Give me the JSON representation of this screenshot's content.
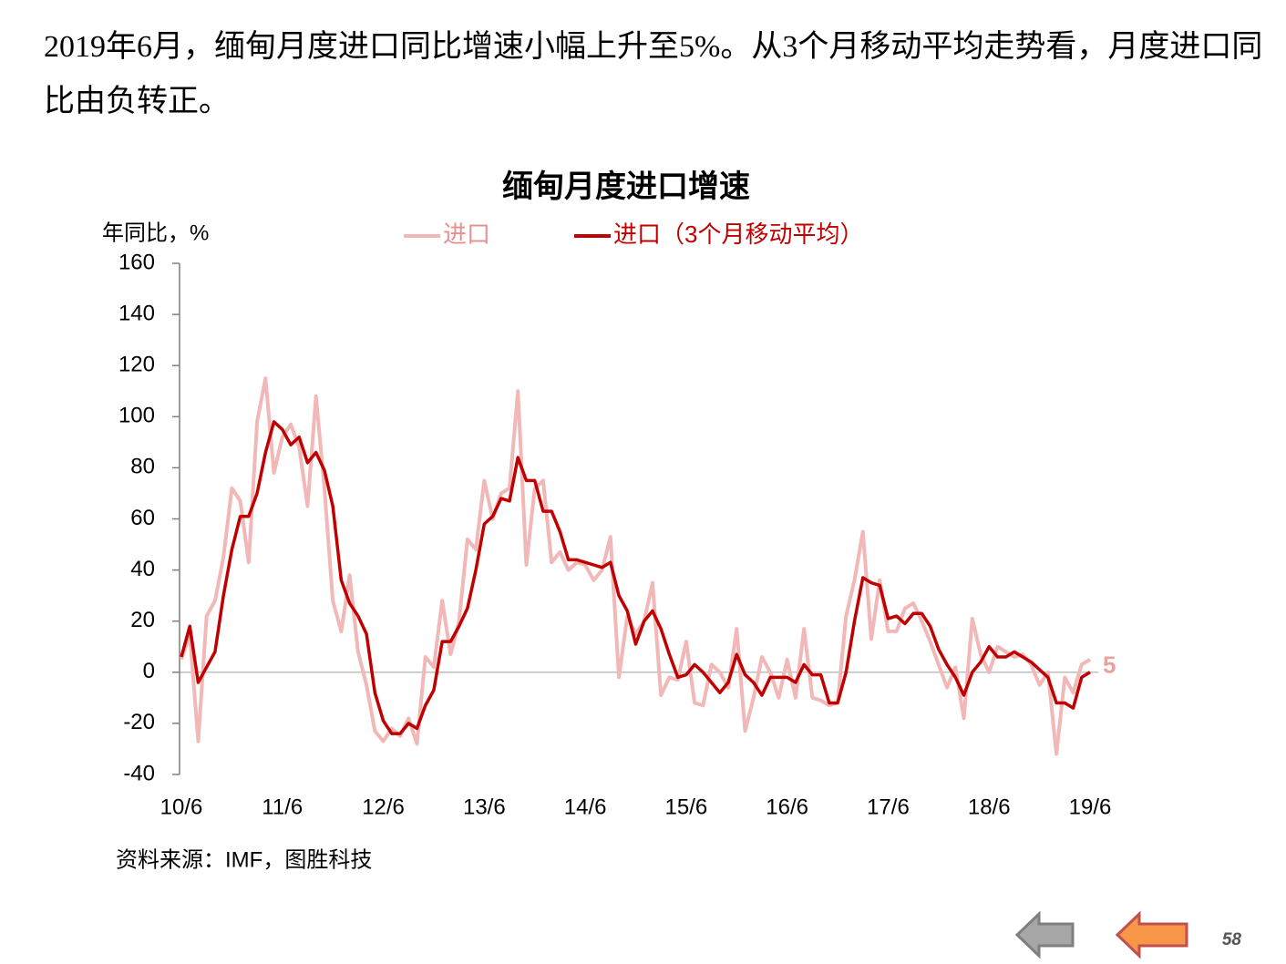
{
  "text": "2019年6月，缅甸月度进口同比增速小幅上升至5%。从3个月移动平均走势看，月度进口同比由负转正。",
  "chart_data": {
    "type": "line",
    "title": "缅甸月度进口增速",
    "y_label": "年同比，%",
    "categories": [
      "10/6",
      null,
      null,
      null,
      null,
      null,
      null,
      null,
      null,
      null,
      null,
      null,
      "11/6",
      null,
      null,
      null,
      null,
      null,
      null,
      null,
      null,
      null,
      null,
      null,
      "12/6",
      null,
      null,
      null,
      null,
      null,
      null,
      null,
      null,
      null,
      null,
      null,
      "13/6",
      null,
      null,
      null,
      null,
      null,
      null,
      null,
      null,
      null,
      null,
      null,
      "14/6",
      null,
      null,
      null,
      null,
      null,
      null,
      null,
      null,
      null,
      null,
      null,
      "15/6",
      null,
      null,
      null,
      null,
      null,
      null,
      null,
      null,
      null,
      null,
      null,
      "16/6",
      null,
      null,
      null,
      null,
      null,
      null,
      null,
      null,
      null,
      null,
      null,
      "17/6",
      null,
      null,
      null,
      null,
      null,
      null,
      null,
      null,
      null,
      null,
      null,
      "18/6",
      null,
      null,
      null,
      null,
      null,
      null,
      null,
      null,
      null,
      null,
      null,
      "19/6"
    ],
    "series": [
      {
        "name": "进口",
        "color": "#f2b8b8",
        "values": [
          5,
          15,
          -27,
          22,
          28,
          45,
          72,
          67,
          43,
          98,
          115,
          78,
          92,
          97,
          88,
          65,
          108,
          72,
          28,
          16,
          38,
          8,
          -5,
          -23,
          -27,
          -22,
          -25,
          -18,
          -28,
          6,
          2,
          28,
          7,
          20,
          52,
          48,
          75,
          60,
          70,
          72,
          110,
          42,
          72,
          75,
          43,
          47,
          40,
          43,
          42,
          36,
          40,
          53,
          -2,
          22,
          15,
          20,
          35,
          -9,
          -2,
          -3,
          12,
          -12,
          -13,
          3,
          0,
          -6,
          17,
          -23,
          -10,
          6,
          0,
          -10,
          5,
          -10,
          17,
          -10,
          -11,
          -13,
          -12,
          22,
          36,
          55,
          13,
          36,
          16,
          16,
          25,
          27,
          20,
          12,
          3,
          -6,
          2,
          -18,
          21,
          7,
          0,
          10,
          8,
          6,
          7,
          3,
          -5,
          0,
          -32,
          -2,
          -8,
          3,
          5
        ]
      },
      {
        "name": "进口（3个月移动平均）",
        "color": "#c00000",
        "values": [
          6,
          18,
          -4,
          2,
          8,
          30,
          48,
          61,
          61,
          70,
          86,
          98,
          95,
          89,
          92,
          82,
          86,
          79,
          65,
          36,
          27,
          22,
          15,
          -8,
          -19,
          -24,
          -24,
          -20,
          -22,
          -13,
          -7,
          12,
          12,
          18,
          25,
          40,
          58,
          61,
          68,
          67,
          84,
          75,
          75,
          63,
          63,
          55,
          44,
          44,
          43,
          42,
          41,
          43,
          30,
          24,
          11,
          20,
          24,
          17,
          7,
          -2,
          -1,
          3,
          0,
          -4,
          -8,
          -4,
          7,
          -1,
          -4,
          -9,
          -2,
          -2,
          -2,
          -4,
          3,
          -1,
          -1,
          -12,
          -12,
          0,
          20,
          37,
          35,
          34,
          21,
          22,
          19,
          23,
          23,
          18,
          9,
          3,
          -2,
          -9,
          0,
          4,
          10,
          6,
          6,
          8,
          6,
          4,
          1,
          -2,
          -12,
          -12,
          -14,
          -2,
          0
        ]
      }
    ],
    "ylim": [
      -40,
      160
    ],
    "yticks": [
      -40,
      -20,
      0,
      20,
      40,
      60,
      80,
      100,
      120,
      140,
      160
    ],
    "source": "资料来源：IMF，图胜科技"
  },
  "page_number": "58"
}
